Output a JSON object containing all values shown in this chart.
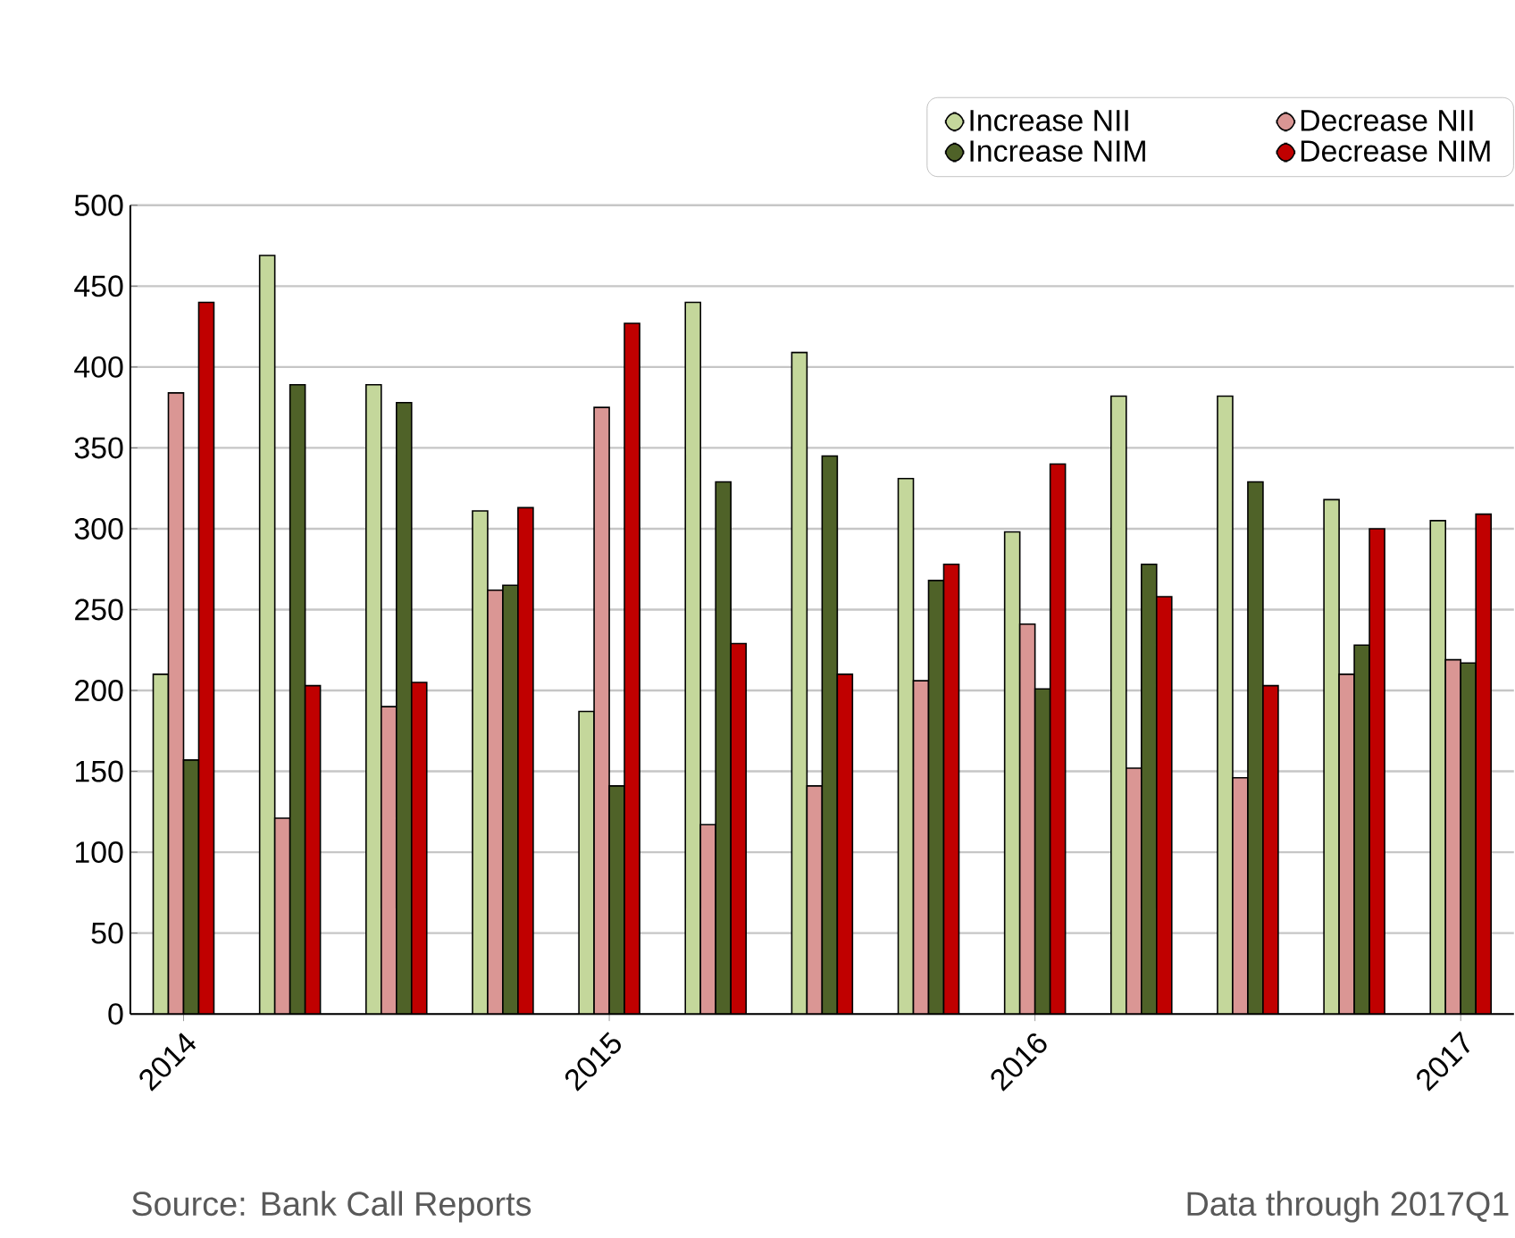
{
  "chart_data": {
    "type": "bar",
    "categories": [
      "2014",
      null,
      null,
      null,
      "2015",
      null,
      null,
      null,
      "2016",
      null,
      null,
      null,
      "2017"
    ],
    "series": [
      {
        "name": "Increase NII",
        "color": "#c4d79b",
        "values": [
          210,
          469,
          389,
          311,
          187,
          440,
          409,
          331,
          298,
          382,
          382,
          318,
          305
        ]
      },
      {
        "name": "Decrease NII",
        "color": "#da9694",
        "values": [
          384,
          121,
          190,
          262,
          375,
          117,
          141,
          206,
          241,
          152,
          146,
          210,
          219
        ]
      },
      {
        "name": "Increase NIM",
        "color": "#4f6228",
        "values": [
          157,
          389,
          378,
          265,
          141,
          329,
          345,
          268,
          201,
          278,
          329,
          228,
          217
        ]
      },
      {
        "name": "Decrease NIM",
        "color": "#c00000",
        "values": [
          440,
          203,
          205,
          313,
          427,
          229,
          210,
          278,
          340,
          258,
          203,
          300,
          309
        ]
      }
    ],
    "ylim": [
      0,
      500
    ],
    "yticks": [
      0,
      50,
      100,
      150,
      200,
      250,
      300,
      350,
      400,
      450,
      500
    ],
    "grid": "y",
    "legend": "top right",
    "annotations": [
      "Source: Bank Call Reports",
      "Data through 2017Q1"
    ]
  }
}
